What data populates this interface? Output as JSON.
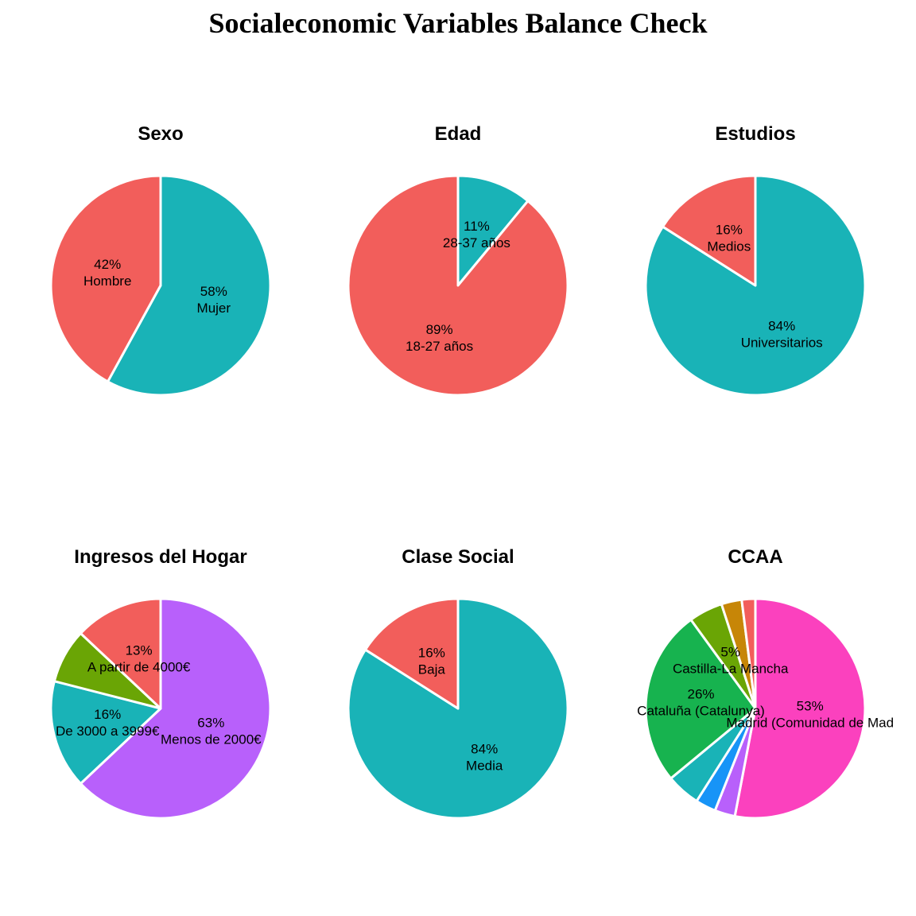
{
  "title": "Socialeconomic Variables Balance Check",
  "chart_data": [
    {
      "type": "pie",
      "title": "Sexo",
      "slices": [
        {
          "label": "Mujer",
          "value": 58,
          "text": "58%",
          "color": "#19b3b7"
        },
        {
          "label": "Hombre",
          "value": 42,
          "text": "42%",
          "color": "#f25e5b"
        }
      ]
    },
    {
      "type": "pie",
      "title": "Edad",
      "slices": [
        {
          "label": "28-37 años",
          "value": 11,
          "text": "11%",
          "color": "#19b3b7"
        },
        {
          "label": "18-27 años",
          "value": 89,
          "text": "89%",
          "color": "#f25e5b"
        }
      ]
    },
    {
      "type": "pie",
      "title": "Estudios",
      "slices": [
        {
          "label": "Universitarios",
          "value": 84,
          "text": "84%",
          "color": "#19b3b7"
        },
        {
          "label": "Medios",
          "value": 16,
          "text": "16%",
          "color": "#f25e5b"
        }
      ]
    },
    {
      "type": "pie",
      "title": "Ingresos del Hogar",
      "slices": [
        {
          "label": "Menos de 2000€",
          "value": 63,
          "text": "63%",
          "color": "#b860fb"
        },
        {
          "label": "De 3000 a 3999€",
          "value": 16,
          "text": "16%",
          "color": "#19b3b7"
        },
        {
          "label": "",
          "value": 8,
          "text": "",
          "color": "#6aa505"
        },
        {
          "label": "A partir de 4000€",
          "value": 13,
          "text": "13%",
          "color": "#f25e5b"
        }
      ]
    },
    {
      "type": "pie",
      "title": "Clase Social",
      "slices": [
        {
          "label": "Media",
          "value": 84,
          "text": "84%",
          "color": "#19b3b7"
        },
        {
          "label": "Baja",
          "value": 16,
          "text": "16%",
          "color": "#f25e5b"
        }
      ]
    },
    {
      "type": "pie",
      "title": "CCAA",
      "slices": [
        {
          "label": "Madrid (Comunidad de Mad",
          "value": 53,
          "text": "53%",
          "color": "#fb41be"
        },
        {
          "label": "",
          "value": 3,
          "text": "",
          "color": "#b860fb"
        },
        {
          "label": "",
          "value": 3,
          "text": "",
          "color": "#1794f7"
        },
        {
          "label": "",
          "value": 5,
          "text": "",
          "color": "#19b3b7"
        },
        {
          "label": "Cataluña (Catalunya)",
          "value": 26,
          "text": "26%",
          "color": "#17b34f"
        },
        {
          "label": "Castilla-La Mancha",
          "value": 5,
          "text": "5%",
          "color": "#6aa505"
        },
        {
          "label": "",
          "value": 3,
          "text": "",
          "color": "#c78607"
        },
        {
          "label": "",
          "value": 2,
          "text": "",
          "color": "#f25e5b"
        }
      ]
    }
  ]
}
